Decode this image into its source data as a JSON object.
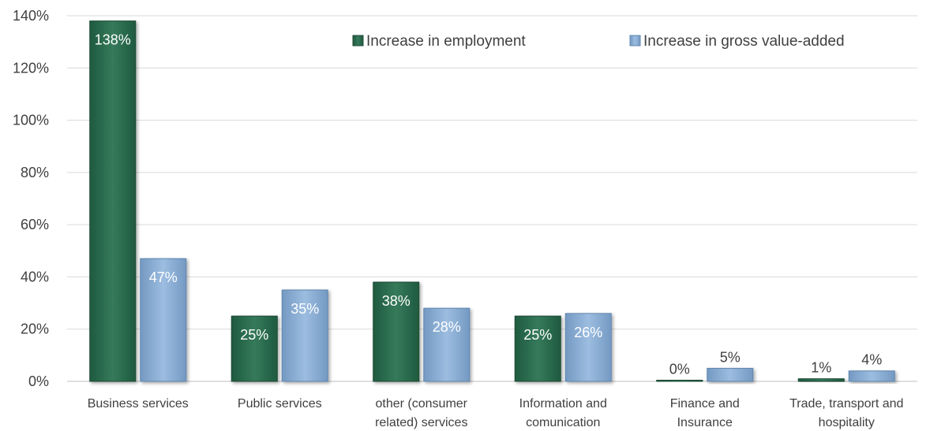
{
  "chart_data": {
    "type": "bar",
    "categories": [
      [
        "Business services"
      ],
      [
        "Public services"
      ],
      [
        "other (consumer",
        "related) services"
      ],
      [
        "Information and",
        "comunication"
      ],
      [
        "Finance and",
        "Insurance"
      ],
      [
        "Trade, transport and",
        "hospitality"
      ]
    ],
    "series": [
      {
        "name": "Increase in employment",
        "values": [
          138,
          25,
          38,
          25,
          0,
          1
        ],
        "labels": [
          "138%",
          "25%",
          "38%",
          "25%",
          "0%",
          "1%"
        ],
        "color": "#2e6b4f"
      },
      {
        "name": "Increase in gross value-added",
        "values": [
          47,
          35,
          28,
          26,
          5,
          4
        ],
        "labels": [
          "47%",
          "35%",
          "28%",
          "26%",
          "5%",
          "4%"
        ],
        "color": "#8fb2d6"
      }
    ],
    "ylim": [
      0,
      140
    ],
    "yticks": [
      0,
      20,
      40,
      60,
      80,
      100,
      120,
      140
    ],
    "ytick_labels": [
      "0%",
      "20%",
      "40%",
      "60%",
      "80%",
      "100%",
      "120%",
      "140%"
    ],
    "title": "",
    "xlabel": "",
    "ylabel": "",
    "grid": true,
    "legend_position": "top-right"
  }
}
